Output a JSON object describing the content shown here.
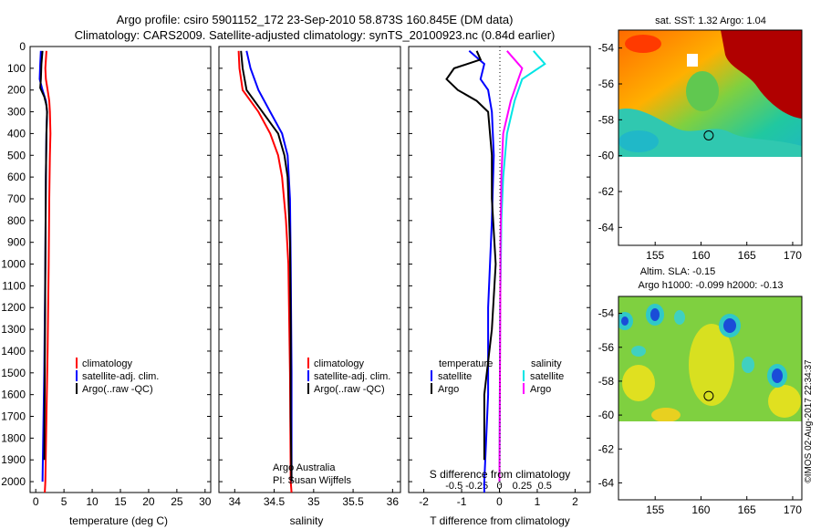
{
  "header": {
    "title_line1": "Argo profile: csiro 5901152_172 23-Sep-2010 58.873S 160.845E (DM data)",
    "title_line2": "Climatology: CARS2009. Satellite-adjusted climatology: synTS_20100923.nc (0.84d earlier)"
  },
  "footer": {
    "credit": "©IMOS 02-Aug-2017 22:34:37"
  },
  "colors": {
    "climatology": "#ff0000",
    "satellite": "#0000ff",
    "argo": "#000000",
    "salinity_satellite": "#00e5e5",
    "salinity_argo": "#ff00ff"
  },
  "chart_data": [
    {
      "type": "line",
      "name": "temperature-profile",
      "xlabel": "temperature (deg C)",
      "ylabel": "",
      "xlim": [
        -1,
        31
      ],
      "ylim": [
        2050,
        0
      ],
      "xticks": [
        0,
        5,
        10,
        15,
        20,
        25,
        30
      ],
      "yticks": [
        0,
        100,
        200,
        300,
        400,
        500,
        600,
        700,
        800,
        900,
        1000,
        1100,
        1200,
        1300,
        1400,
        1500,
        1600,
        1700,
        1800,
        1900,
        2000
      ],
      "legend": [
        "climatology",
        "satellite-adj. clim.",
        "Argo(..raw -QC)"
      ],
      "series": [
        {
          "name": "climatology",
          "points": [
            [
              1.9,
              20
            ],
            [
              1.8,
              60
            ],
            [
              1.7,
              100
            ],
            [
              1.8,
              150
            ],
            [
              2.1,
              200
            ],
            [
              2.4,
              250
            ],
            [
              2.5,
              300
            ],
            [
              2.6,
              400
            ],
            [
              2.5,
              500
            ],
            [
              2.4,
              700
            ],
            [
              2.3,
              1000
            ],
            [
              2.1,
              1400
            ],
            [
              1.9,
              1700
            ],
            [
              1.7,
              2000
            ],
            [
              1.6,
              2050
            ]
          ]
        },
        {
          "name": "satellite-adj. clim.",
          "points": [
            [
              0.9,
              20
            ],
            [
              0.8,
              80
            ],
            [
              0.7,
              150
            ],
            [
              1.2,
              200
            ],
            [
              1.8,
              250
            ],
            [
              2.0,
              300
            ],
            [
              1.9,
              400
            ],
            [
              1.8,
              600
            ],
            [
              1.7,
              1000
            ],
            [
              1.5,
              1500
            ],
            [
              1.2,
              2000
            ]
          ]
        },
        {
          "name": "Argo(..raw -QC)",
          "points": [
            [
              1.2,
              20
            ],
            [
              1.0,
              80
            ],
            [
              0.9,
              150
            ],
            [
              0.8,
              190
            ],
            [
              1.5,
              230
            ],
            [
              1.9,
              270
            ],
            [
              2.0,
              300
            ],
            [
              1.9,
              400
            ],
            [
              1.8,
              600
            ],
            [
              1.7,
              1000
            ],
            [
              1.6,
              1500
            ],
            [
              1.5,
              1900
            ]
          ]
        }
      ]
    },
    {
      "type": "line",
      "name": "salinity-profile",
      "xlabel": "salinity",
      "ylabel": "",
      "xlim": [
        33.8,
        36.1
      ],
      "ylim": [
        2050,
        0
      ],
      "xticks": [
        34,
        34.5,
        35,
        35.5,
        36
      ],
      "legend": [
        "climatology",
        "satellite-adj. clim.",
        "Argo(..raw -QC)"
      ],
      "annotation": [
        "Argo Australia",
        "PI: Susan Wijffels"
      ],
      "series": [
        {
          "name": "climatology",
          "points": [
            [
              34.05,
              20
            ],
            [
              34.06,
              100
            ],
            [
              34.1,
              200
            ],
            [
              34.3,
              300
            ],
            [
              34.45,
              400
            ],
            [
              34.55,
              500
            ],
            [
              34.6,
              600
            ],
            [
              34.65,
              800
            ],
            [
              34.68,
              1000
            ],
            [
              34.7,
              1500
            ],
            [
              34.71,
              2000
            ],
            [
              34.72,
              2050
            ]
          ]
        },
        {
          "name": "satellite-adj. clim.",
          "points": [
            [
              34.15,
              20
            ],
            [
              34.2,
              100
            ],
            [
              34.3,
              200
            ],
            [
              34.45,
              300
            ],
            [
              34.6,
              400
            ],
            [
              34.67,
              500
            ],
            [
              34.7,
              700
            ],
            [
              34.71,
              1000
            ],
            [
              34.72,
              1500
            ],
            [
              34.72,
              2000
            ]
          ]
        },
        {
          "name": "Argo(..raw -QC)",
          "points": [
            [
              34.08,
              20
            ],
            [
              34.1,
              100
            ],
            [
              34.15,
              200
            ],
            [
              34.35,
              300
            ],
            [
              34.55,
              400
            ],
            [
              34.63,
              500
            ],
            [
              34.67,
              600
            ],
            [
              34.7,
              900
            ],
            [
              34.71,
              1300
            ],
            [
              34.71,
              1700
            ],
            [
              34.72,
              2000
            ]
          ]
        }
      ]
    },
    {
      "type": "line",
      "name": "difference-profile",
      "xlabel": "T difference from climatology",
      "xlabel2": "S difference from climatology",
      "xlim": [
        -2.4,
        2.4
      ],
      "ylim": [
        2050,
        0
      ],
      "xticks": [
        -2,
        -1,
        0,
        1,
        2
      ],
      "xticks2": [
        -0.5,
        -0.25,
        0,
        0.25,
        0.5
      ],
      "legend_temperature": {
        "title": "temperature",
        "items": [
          "satellite",
          "Argo"
        ]
      },
      "legend_salinity": {
        "title": "salinity",
        "items": [
          "satellite",
          "Argo"
        ]
      },
      "series": [
        {
          "name": "temperature satellite",
          "points": [
            [
              -0.8,
              20
            ],
            [
              -0.4,
              80
            ],
            [
              -0.5,
              150
            ],
            [
              -0.3,
              200
            ],
            [
              -0.2,
              300
            ],
            [
              -0.15,
              500
            ],
            [
              -0.2,
              800
            ],
            [
              -0.3,
              1200
            ],
            [
              -0.3,
              1600
            ],
            [
              -0.4,
              2000
            ],
            [
              -0.4,
              2050
            ]
          ]
        },
        {
          "name": "temperature Argo",
          "points": [
            [
              -0.6,
              20
            ],
            [
              -0.5,
              60
            ],
            [
              -1.2,
              100
            ],
            [
              -1.4,
              150
            ],
            [
              -1.1,
              200
            ],
            [
              -0.6,
              250
            ],
            [
              -0.3,
              300
            ],
            [
              -0.2,
              500
            ],
            [
              -0.2,
              700
            ],
            [
              -0.1,
              1000
            ],
            [
              -0.2,
              1300
            ],
            [
              -0.4,
              1600
            ],
            [
              -0.4,
              1900
            ]
          ]
        },
        {
          "name": "salinity satellite",
          "points": [
            [
              0.9,
              20
            ],
            [
              1.2,
              80
            ],
            [
              0.6,
              150
            ],
            [
              0.4,
              250
            ],
            [
              0.2,
              400
            ],
            [
              0.1,
              600
            ],
            [
              0.05,
              800
            ],
            [
              0.02,
              1200
            ],
            [
              0.0,
              2000
            ]
          ]
        },
        {
          "name": "salinity Argo",
          "points": [
            [
              0.2,
              20
            ],
            [
              0.4,
              60
            ],
            [
              0.6,
              100
            ],
            [
              0.5,
              150
            ],
            [
              0.3,
              250
            ],
            [
              0.1,
              400
            ],
            [
              0.05,
              600
            ],
            [
              0.03,
              900
            ],
            [
              0.02,
              1300
            ],
            [
              0.0,
              2000
            ]
          ]
        }
      ]
    },
    {
      "type": "heatmap",
      "name": "sst-map",
      "title": "sat. SST: 1.32  Argo: 1.04",
      "xlim": [
        151,
        171
      ],
      "ylim": [
        -65,
        -53
      ],
      "xticks": [
        155,
        160,
        165,
        170
      ],
      "yticks": [
        -54,
        -56,
        -58,
        -60,
        -62,
        -64
      ],
      "data_ylim": [
        -60,
        -53
      ],
      "argo_position": [
        160.845,
        -58.873
      ]
    },
    {
      "type": "heatmap",
      "name": "sla-map",
      "title_line1": "Altim. SLA: -0.15",
      "title_line2": "Argo h1000: -0.099 h2000: -0.13",
      "xlim": [
        151,
        171
      ],
      "ylim": [
        -65,
        -53
      ],
      "xticks": [
        155,
        160,
        165,
        170
      ],
      "yticks": [
        -54,
        -56,
        -58,
        -60,
        -62,
        -64
      ],
      "data_ylim": [
        -60,
        -53
      ],
      "argo_position": [
        160.845,
        -58.873
      ]
    }
  ]
}
